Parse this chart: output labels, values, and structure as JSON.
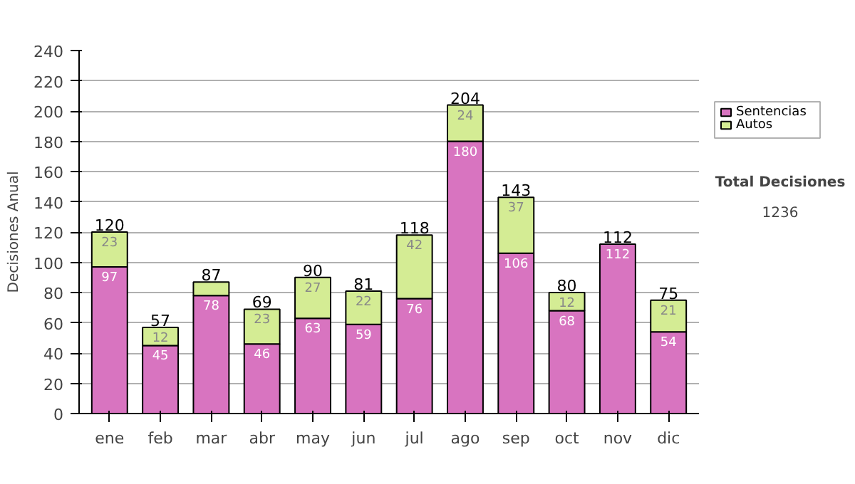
{
  "chart_data": {
    "type": "bar",
    "stacked": true,
    "ylabel": "Decisiones Anual",
    "categories": [
      "ene",
      "feb",
      "mar",
      "abr",
      "may",
      "jun",
      "jul",
      "ago",
      "sep",
      "oct",
      "nov",
      "dic"
    ],
    "series": [
      {
        "name": "Sentencias",
        "color": "#d874c0",
        "values": [
          97,
          45,
          78,
          46,
          63,
          59,
          76,
          180,
          106,
          68,
          112,
          54
        ],
        "value_labels": [
          "97",
          "45",
          "78",
          "46",
          "63",
          "59",
          "76",
          "180",
          "106",
          "68",
          "112",
          "54"
        ]
      },
      {
        "name": "Autos",
        "color": "#d4ec94",
        "values": [
          23,
          12,
          9,
          23,
          27,
          22,
          42,
          24,
          37,
          12,
          0,
          21
        ],
        "value_labels": [
          "23",
          "12",
          null,
          "23",
          "27",
          "22",
          "42",
          "24",
          "37",
          "12",
          null,
          "21"
        ]
      }
    ],
    "totals": [
      "120",
      "57",
      "87",
      "69",
      "90",
      "81",
      "118",
      "204",
      "143",
      "80",
      "112",
      "75"
    ],
    "ylim": [
      0,
      240
    ],
    "yticks": [
      0,
      20,
      40,
      60,
      80,
      100,
      120,
      140,
      160,
      180,
      200,
      220,
      240
    ],
    "grid": "y",
    "legend": "right",
    "annotations": [
      "Total Decisiones",
      "1236"
    ]
  }
}
